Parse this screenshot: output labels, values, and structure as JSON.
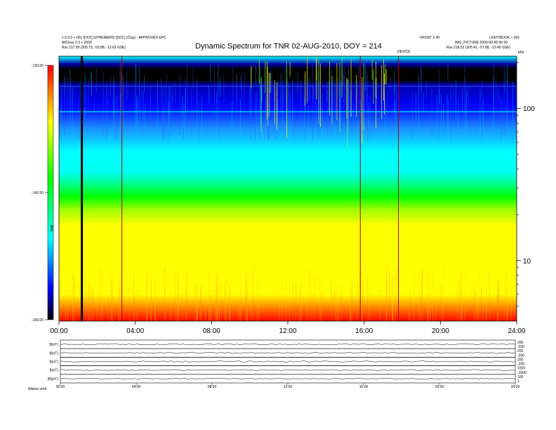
{
  "chart_data": {
    "type": "heatmap",
    "title": "Dynamic Spectrum for TNR 02-AUG-2010, DOY = 214",
    "header_left": [
      "1.0.0.0 + 001 [DOC] EPHEMERIS [SOC] (Clay) - APPROVED EPC",
      "AllClear 2.3 + 2000",
      "Rss    217.59 (305.73, -53.88, -12.62 GSE)"
    ],
    "header_right": [
      "FRONT 2.40",
      "IMG_PICTURE 2000-00-00 00 00",
      "Rss    218.52 (305.42, -57.88, -13.45 GSE)"
    ],
    "header_right_corner": "LIGHTBOOK + 001",
    "header_right_mark": "DEVICE",
    "units_label": "kHz",
    "ylabel": "TNR",
    "x_ticks": [
      "00:00",
      "04:00",
      "08:00",
      "12:00",
      "16:00",
      "20:00",
      "24:00"
    ],
    "x_range_hours": [
      0,
      24
    ],
    "y_scale": "log",
    "y_ticks": [
      10,
      100
    ],
    "y_range_khz": [
      4,
      220
    ],
    "colorbar": {
      "ticks": [
        "-130.00",
        "-142.50",
        "-155.00"
      ],
      "range": [
        -155,
        -130
      ],
      "colors": [
        "#ff0000",
        "#ffff00",
        "#00ff00",
        "#00ffff",
        "#0000ff",
        "#000000"
      ]
    },
    "features": [
      {
        "time_hours": 1.2,
        "kind": "black-band"
      },
      {
        "time_hours": 3.3,
        "kind": "red-line"
      },
      {
        "time_hours": 15.8,
        "kind": "red-line"
      },
      {
        "time_hours": 17.8,
        "kind": "red-line"
      }
    ]
  },
  "ephemeris_panels": {
    "left_labels": [
      "B(nT)",
      "B(nT)",
      "B(nT)",
      "B(nT)",
      "|B|(nT)"
    ],
    "right_labels": [
      [
        "200",
        "-200"
      ],
      [
        "200",
        "-200"
      ],
      [
        "200",
        "-200"
      ],
      [
        "1000",
        "-1000"
      ],
      [
        "100",
        "1"
      ]
    ],
    "x_ticks": [
      "00:00",
      "04:00",
      "08:00",
      "12:00",
      "16:00",
      "20:00",
      "24:00"
    ],
    "footer": "Wakes  orbit"
  }
}
